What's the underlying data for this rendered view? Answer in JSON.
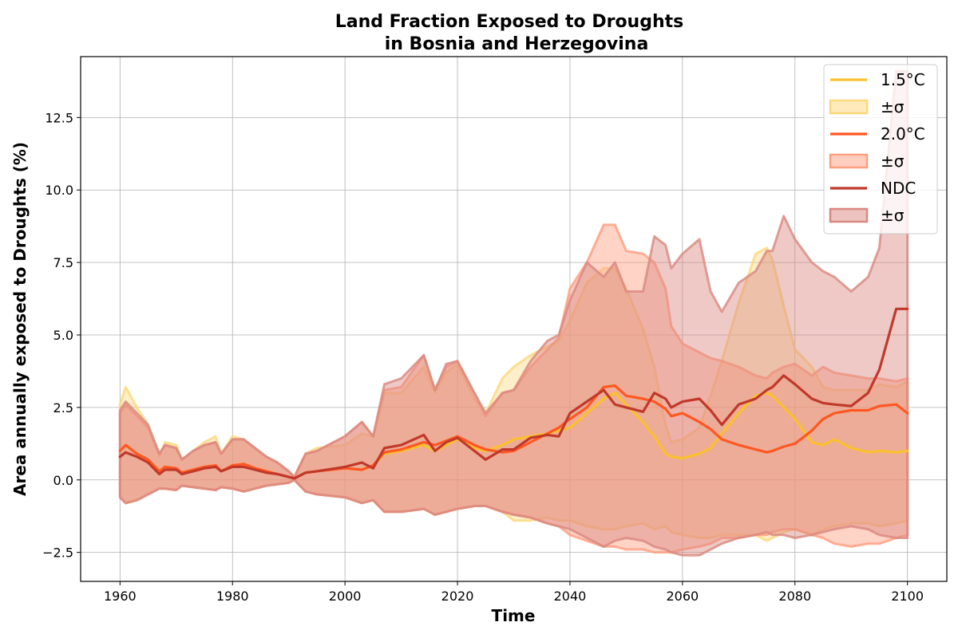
{
  "chart_data": {
    "type": "area",
    "title_line1": "Land Fraction Exposed to Droughts",
    "title_line2": "in Bosnia and Herzegovina",
    "xlabel": "Time",
    "ylabel": "Area annually exposed to Droughts (%)",
    "xlim": [
      1953,
      2107
    ],
    "ylim": [
      -3.5,
      14.6
    ],
    "xticks": [
      1960,
      1980,
      2000,
      2020,
      2040,
      2060,
      2080,
      2100
    ],
    "yticks": [
      -2.5,
      0.0,
      2.5,
      5.0,
      7.5,
      10.0,
      12.5
    ],
    "xtick_labels": [
      "1960",
      "1980",
      "2000",
      "2020",
      "2040",
      "2060",
      "2080",
      "2100"
    ],
    "ytick_labels": [
      "−2.5",
      "0.0",
      "2.5",
      "5.0",
      "7.5",
      "10.0",
      "12.5"
    ],
    "grid": true,
    "legend_position": "top-right",
    "series": [
      {
        "name": "1.5°C",
        "band_label": "±σ",
        "color": "#fbc02d",
        "band_color": "#fdd87a",
        "x": [
          1960,
          1961,
          1963,
          1965,
          1967,
          1968,
          1970,
          1971,
          1973,
          1975,
          1977,
          1978,
          1980,
          1982,
          1984,
          1986,
          1988,
          1990,
          1991,
          1993,
          1995,
          2000,
          2003,
          2005,
          2007,
          2010,
          2014,
          2016,
          2018,
          2020,
          2023,
          2025,
          2028,
          2030,
          2033,
          2036,
          2038,
          2040,
          2043,
          2046,
          2048,
          2050,
          2053,
          2055,
          2057,
          2058,
          2060,
          2063,
          2065,
          2067,
          2070,
          2073,
          2075,
          2076,
          2078,
          2080,
          2083,
          2085,
          2087,
          2090,
          2093,
          2095,
          2098,
          2100
        ],
        "mean": [
          1.0,
          1.2,
          0.9,
          0.7,
          0.3,
          0.45,
          0.4,
          0.25,
          0.35,
          0.45,
          0.5,
          0.3,
          0.5,
          0.55,
          0.4,
          0.3,
          0.2,
          0.1,
          0.05,
          0.25,
          0.3,
          0.4,
          0.35,
          0.5,
          0.9,
          1.0,
          1.2,
          1.0,
          1.2,
          1.4,
          1.1,
          1.0,
          1.2,
          1.4,
          1.5,
          1.6,
          1.7,
          1.8,
          2.3,
          2.8,
          3.0,
          2.6,
          2.0,
          1.5,
          0.9,
          0.8,
          0.75,
          0.9,
          1.1,
          1.6,
          2.3,
          2.9,
          3.0,
          2.9,
          2.5,
          2.1,
          1.3,
          1.2,
          1.4,
          1.1,
          0.95,
          1.0,
          0.95,
          1.0
        ],
        "upper": [
          2.6,
          3.2,
          2.5,
          1.9,
          0.8,
          1.3,
          1.2,
          0.7,
          1.0,
          1.3,
          1.5,
          0.9,
          1.5,
          1.4,
          1.1,
          0.8,
          0.6,
          0.3,
          0.1,
          0.9,
          1.1,
          1.2,
          1.6,
          1.5,
          3.0,
          3.0,
          3.9,
          3.0,
          3.7,
          4.0,
          2.8,
          2.3,
          3.5,
          3.9,
          4.3,
          4.6,
          4.8,
          5.5,
          6.8,
          7.3,
          7.3,
          6.6,
          5.2,
          3.9,
          1.9,
          1.3,
          1.4,
          1.8,
          2.9,
          4.1,
          6.1,
          7.8,
          8.0,
          7.6,
          6.0,
          4.5,
          3.9,
          3.2,
          3.1,
          3.1,
          3.1,
          3.3,
          3.2,
          3.4
        ],
        "lower": [
          -0.6,
          -0.8,
          -0.7,
          -0.5,
          -0.3,
          -0.3,
          -0.35,
          -0.2,
          -0.25,
          -0.3,
          -0.35,
          -0.25,
          -0.3,
          -0.4,
          -0.3,
          -0.2,
          -0.15,
          -0.1,
          0.0,
          -0.4,
          -0.5,
          -0.6,
          -0.8,
          -0.7,
          -1.1,
          -1.1,
          -1.0,
          -1.2,
          -1.1,
          -1.0,
          -0.9,
          -0.9,
          -1.1,
          -1.4,
          -1.4,
          -1.3,
          -1.4,
          -1.4,
          -1.6,
          -1.7,
          -1.7,
          -1.6,
          -1.5,
          -1.7,
          -1.6,
          -1.8,
          -1.9,
          -2.0,
          -2.0,
          -1.9,
          -1.9,
          -1.9,
          -2.1,
          -2.0,
          -1.8,
          -1.7,
          -1.9,
          -1.7,
          -1.6,
          -1.5,
          -1.5,
          -1.6,
          -1.5,
          -1.4
        ]
      },
      {
        "name": "2.0°C",
        "band_label": "±σ",
        "color": "#ff5722",
        "band_color": "#ff9e80",
        "x": [
          1960,
          1961,
          1963,
          1965,
          1967,
          1968,
          1970,
          1971,
          1973,
          1975,
          1977,
          1978,
          1980,
          1982,
          1984,
          1986,
          1988,
          1990,
          1991,
          1993,
          1995,
          2000,
          2003,
          2005,
          2007,
          2010,
          2014,
          2016,
          2018,
          2020,
          2023,
          2025,
          2028,
          2030,
          2033,
          2036,
          2038,
          2040,
          2043,
          2046,
          2048,
          2050,
          2053,
          2055,
          2057,
          2058,
          2060,
          2063,
          2065,
          2067,
          2070,
          2073,
          2075,
          2076,
          2078,
          2080,
          2083,
          2085,
          2087,
          2090,
          2093,
          2095,
          2098,
          2100
        ],
        "mean": [
          1.0,
          1.2,
          0.9,
          0.7,
          0.3,
          0.45,
          0.4,
          0.25,
          0.35,
          0.45,
          0.5,
          0.3,
          0.5,
          0.55,
          0.4,
          0.3,
          0.2,
          0.1,
          0.05,
          0.25,
          0.3,
          0.4,
          0.35,
          0.5,
          0.95,
          1.05,
          1.3,
          1.2,
          1.35,
          1.5,
          1.2,
          1.05,
          0.95,
          1.0,
          1.3,
          1.6,
          1.8,
          2.1,
          2.5,
          3.2,
          3.25,
          2.9,
          2.8,
          2.7,
          2.45,
          2.2,
          2.3,
          2.0,
          1.75,
          1.4,
          1.2,
          1.05,
          0.95,
          1.0,
          1.15,
          1.25,
          1.7,
          2.1,
          2.3,
          2.4,
          2.4,
          2.55,
          2.6,
          2.3
        ],
        "upper": [
          2.3,
          2.6,
          2.2,
          1.8,
          0.9,
          1.2,
          1.1,
          0.7,
          1.0,
          1.2,
          1.3,
          0.9,
          1.4,
          1.4,
          1.1,
          0.8,
          0.6,
          0.3,
          0.1,
          0.9,
          1.0,
          1.5,
          2.0,
          1.5,
          3.1,
          3.2,
          4.3,
          3.1,
          3.9,
          4.1,
          3.0,
          2.2,
          3.0,
          3.1,
          3.9,
          4.5,
          4.9,
          6.6,
          7.5,
          8.8,
          8.8,
          7.9,
          7.8,
          7.5,
          6.6,
          5.3,
          4.7,
          4.4,
          4.2,
          4.1,
          3.9,
          3.6,
          3.5,
          3.7,
          3.9,
          4.0,
          3.6,
          3.9,
          3.7,
          3.6,
          3.5,
          3.5,
          3.4,
          3.5
        ],
        "lower": [
          -0.6,
          -0.8,
          -0.7,
          -0.5,
          -0.3,
          -0.3,
          -0.35,
          -0.2,
          -0.25,
          -0.3,
          -0.35,
          -0.25,
          -0.3,
          -0.4,
          -0.3,
          -0.2,
          -0.15,
          -0.1,
          0.0,
          -0.4,
          -0.5,
          -0.6,
          -0.8,
          -0.7,
          -1.1,
          -1.1,
          -1.0,
          -1.2,
          -1.1,
          -1.0,
          -0.9,
          -0.9,
          -1.1,
          -1.2,
          -1.3,
          -1.5,
          -1.6,
          -1.9,
          -2.1,
          -2.3,
          -2.3,
          -2.4,
          -2.4,
          -2.5,
          -2.5,
          -2.5,
          -2.4,
          -2.3,
          -2.2,
          -2.0,
          -2.0,
          -1.9,
          -1.9,
          -1.8,
          -1.7,
          -1.7,
          -1.9,
          -2.0,
          -2.2,
          -2.3,
          -2.2,
          -2.2,
          -2.0,
          -1.9
        ]
      },
      {
        "name": "NDC",
        "band_label": "±σ",
        "color": "#c0392b",
        "band_color": "#d98880",
        "x": [
          1960,
          1961,
          1963,
          1965,
          1967,
          1968,
          1970,
          1971,
          1973,
          1975,
          1977,
          1978,
          1980,
          1982,
          1984,
          1986,
          1988,
          1990,
          1991,
          1993,
          1995,
          2000,
          2003,
          2005,
          2007,
          2010,
          2014,
          2016,
          2018,
          2020,
          2023,
          2025,
          2028,
          2030,
          2033,
          2036,
          2038,
          2040,
          2043,
          2046,
          2048,
          2050,
          2053,
          2055,
          2057,
          2058,
          2060,
          2063,
          2065,
          2067,
          2070,
          2073,
          2075,
          2076,
          2078,
          2080,
          2083,
          2085,
          2087,
          2090,
          2093,
          2095,
          2098,
          2100
        ],
        "mean": [
          0.8,
          0.95,
          0.8,
          0.6,
          0.2,
          0.35,
          0.35,
          0.2,
          0.3,
          0.4,
          0.45,
          0.3,
          0.45,
          0.45,
          0.35,
          0.25,
          0.2,
          0.1,
          0.05,
          0.25,
          0.3,
          0.45,
          0.6,
          0.4,
          1.1,
          1.2,
          1.55,
          1.0,
          1.3,
          1.45,
          1.0,
          0.7,
          1.05,
          1.05,
          1.45,
          1.55,
          1.5,
          2.3,
          2.7,
          3.1,
          2.6,
          2.5,
          2.35,
          3.0,
          2.8,
          2.5,
          2.7,
          2.8,
          2.4,
          1.9,
          2.6,
          2.8,
          3.1,
          3.2,
          3.6,
          3.3,
          2.8,
          2.65,
          2.6,
          2.55,
          3.0,
          3.8,
          5.9,
          5.9
        ],
        "upper": [
          2.4,
          2.7,
          2.3,
          1.9,
          0.9,
          1.2,
          1.1,
          0.7,
          1.0,
          1.2,
          1.3,
          0.9,
          1.4,
          1.4,
          1.1,
          0.8,
          0.6,
          0.3,
          0.1,
          0.9,
          1.0,
          1.5,
          2.0,
          1.5,
          3.3,
          3.5,
          4.3,
          3.1,
          4.0,
          4.1,
          3.0,
          2.3,
          3.0,
          3.1,
          4.1,
          4.8,
          5.0,
          6.2,
          7.5,
          7.0,
          7.5,
          6.5,
          6.5,
          8.4,
          8.1,
          7.3,
          7.8,
          8.3,
          6.5,
          5.8,
          6.8,
          7.2,
          7.9,
          7.9,
          9.1,
          8.3,
          7.5,
          7.2,
          7.0,
          6.5,
          7.0,
          8.0,
          14.1,
          14.1
        ],
        "lower": [
          -0.6,
          -0.8,
          -0.7,
          -0.5,
          -0.3,
          -0.3,
          -0.35,
          -0.2,
          -0.25,
          -0.3,
          -0.35,
          -0.25,
          -0.3,
          -0.4,
          -0.3,
          -0.2,
          -0.15,
          -0.1,
          0.0,
          -0.4,
          -0.5,
          -0.6,
          -0.8,
          -0.7,
          -1.1,
          -1.1,
          -1.0,
          -1.2,
          -1.1,
          -1.0,
          -0.9,
          -0.9,
          -1.1,
          -1.2,
          -1.3,
          -1.5,
          -1.6,
          -1.7,
          -2.0,
          -2.3,
          -2.1,
          -2.0,
          -2.1,
          -2.3,
          -2.4,
          -2.5,
          -2.6,
          -2.6,
          -2.4,
          -2.2,
          -2.0,
          -1.9,
          -1.8,
          -1.9,
          -1.9,
          -2.0,
          -1.9,
          -1.8,
          -1.7,
          -1.6,
          -1.7,
          -1.9,
          -2.0,
          -2.0
        ]
      }
    ]
  }
}
